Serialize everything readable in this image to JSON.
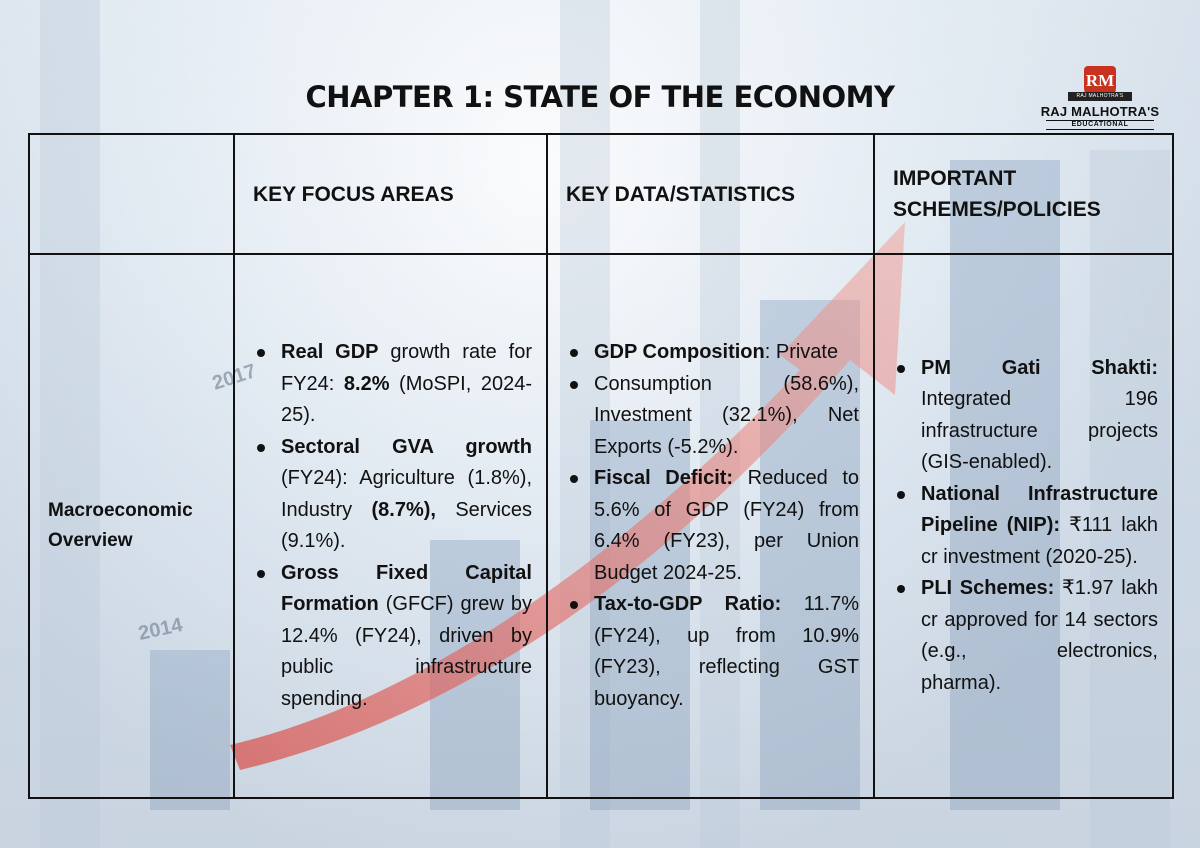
{
  "title": "CHAPTER 1: STATE OF THE ECONOMY",
  "logo": {
    "badge": "RM",
    "ribbon": "RAJ MALHOTRA'S",
    "name": "RAJ MALHOTRA'S",
    "sub": "EDUCATIONAL"
  },
  "headers": {
    "col1": "",
    "col2": "KEY FOCUS AREAS",
    "col3": "KEY DATA/STATISTICS",
    "col4": "IMPORTANT SCHEMES/POLICIES"
  },
  "row": {
    "label": "Macroeconomic Overview",
    "focus": [
      {
        "bold": "Real GDP",
        "text": " growth rate for FY24: ",
        "bold2": "8.2%",
        "text2": " (MoSPI, 2024-25)."
      },
      {
        "bold": "Sectoral GVA growth",
        "text": " (FY24): Agriculture (1.8%), Industry ",
        "bold2": "(8.7%),",
        "text2": " Services (9.1%)."
      },
      {
        "bold": "Gross Fixed Capital Formation",
        "text": " (GFCF) grew by 12.4% (FY24), driven by public infrastructure spending.",
        "bold2": "",
        "text2": ""
      }
    ],
    "data": [
      {
        "bold": "GDP Composition",
        "text": ": Private"
      },
      {
        "bold": "",
        "text": "Consumption (58.6%), Investment (32.1%), Net Exports (-5.2%)."
      },
      {
        "bold": "Fiscal Deficit:",
        "text": " Reduced to 5.6% of GDP (FY24) from 6.4% (FY23), per Union Budget 2024-25."
      },
      {
        "bold": "Tax-to-GDP Ratio:",
        "text": " 11.7% (FY24), up from 10.9% (FY23), reflecting GST buoyancy."
      }
    ],
    "schemes": [
      {
        "bold": "PM Gati Shakti:",
        "text": " Integrated 196 infrastructure projects (GIS-enabled)."
      },
      {
        "bold": "National Infrastructure Pipeline (NIP):",
        "text": " ₹111 lakh cr investment (2020-25)."
      },
      {
        "bold": "PLI Schemes:",
        "text": " ₹1.97 lakh cr approved for 14 sectors (e.g., electronics, pharma)."
      }
    ]
  },
  "background": {
    "label_year_a": "2017",
    "label_year_b": "2014"
  }
}
